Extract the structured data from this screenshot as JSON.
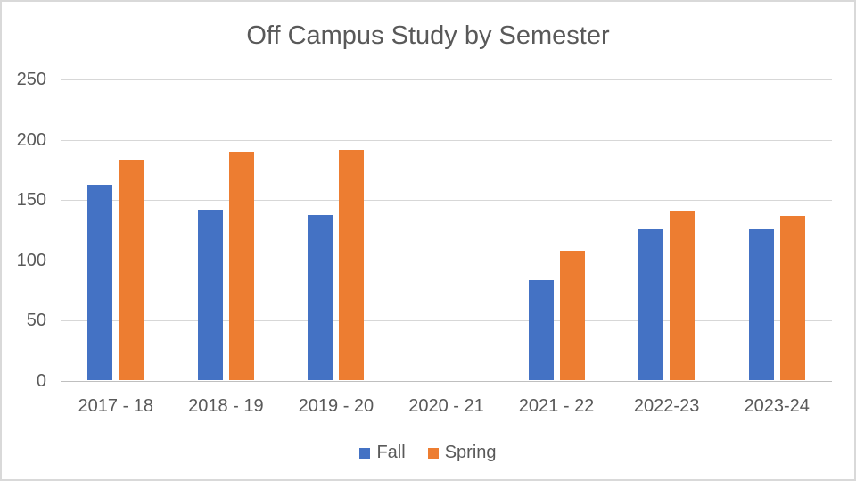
{
  "chart_data": {
    "type": "bar",
    "title": "Off Campus Study by Semester",
    "categories": [
      "2017 - 18",
      "2018 - 19",
      "2019 - 20",
      "2020 - 21",
      "2021 - 22",
      "2022-23",
      "2023-24"
    ],
    "series": [
      {
        "name": "Fall",
        "color": "#4472C4",
        "values": [
          162,
          141,
          137,
          0,
          83,
          125,
          125
        ]
      },
      {
        "name": "Spring",
        "color": "#ED7D31",
        "values": [
          183,
          189,
          191,
          0,
          107,
          140,
          136
        ]
      }
    ],
    "xlabel": "",
    "ylabel": "",
    "ylim": [
      0,
      250
    ],
    "yticks": [
      0,
      50,
      100,
      150,
      200,
      250
    ],
    "grid": true,
    "legend_position": "bottom"
  },
  "colors": {
    "fall_series": "#4472C4",
    "spring_series": "#ED7D31",
    "text": "#595959",
    "gridline": "#D7D7D7",
    "axis_line": "#BFBFBF",
    "frame_border": "#D9D9D9",
    "background": "#FFFFFF"
  }
}
